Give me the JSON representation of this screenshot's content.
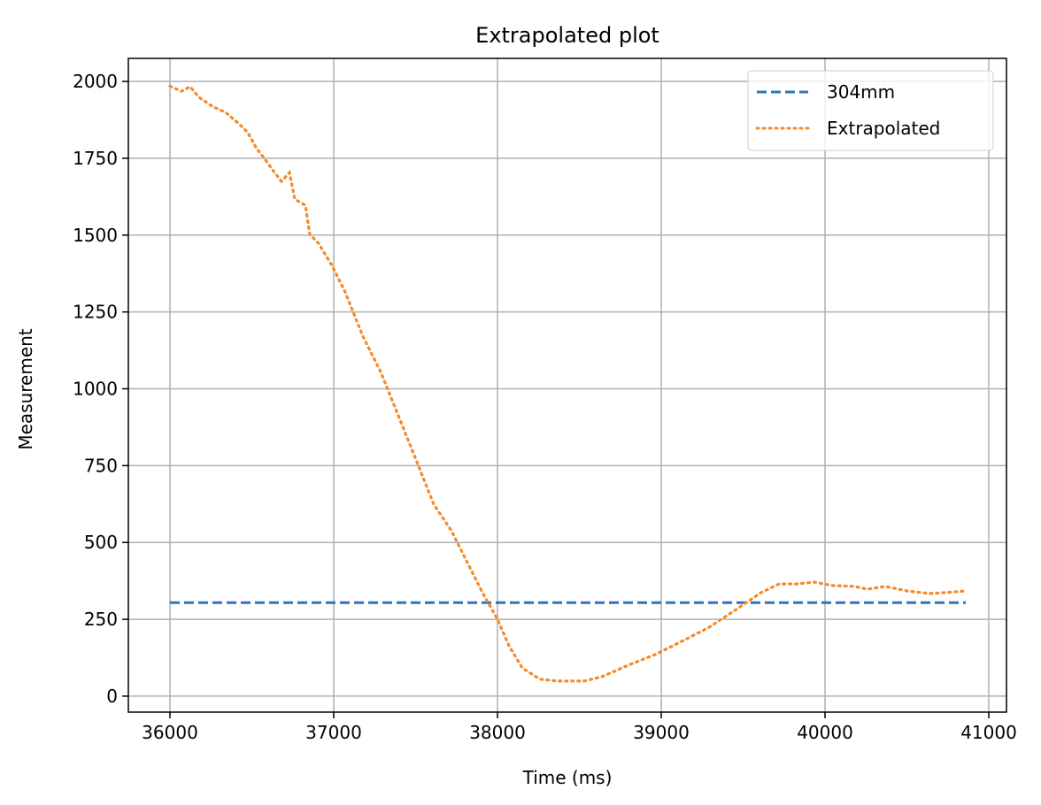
{
  "chart_data": {
    "type": "line",
    "title": "Extrapolated plot",
    "xlabel": "Time (ms)",
    "ylabel": "Measurement",
    "xlim": [
      35746,
      41108
    ],
    "ylim": [
      -52,
      2075
    ],
    "xticks": [
      36000,
      37000,
      38000,
      39000,
      40000,
      41000
    ],
    "yticks": [
      0,
      250,
      500,
      750,
      1000,
      1250,
      1500,
      1750,
      2000
    ],
    "grid": true,
    "legend_position": "top-right",
    "series": [
      {
        "name": "304mm",
        "color": "#3274b5",
        "style": "dashed",
        "x": [
          36000,
          40860
        ],
        "y": [
          304,
          304
        ]
      },
      {
        "name": "Extrapolated",
        "color": "#f58a2c",
        "style": "dotted",
        "x": [
          36000,
          36070,
          36124,
          36178,
          36259,
          36340,
          36422,
          36476,
          36530,
          36573,
          36638,
          36681,
          36730,
          36762,
          36827,
          36854,
          36908,
          36989,
          37070,
          37178,
          37286,
          37395,
          37503,
          37611,
          37719,
          37827,
          37908,
          38000,
          38070,
          38151,
          38259,
          38368,
          38530,
          38638,
          38800,
          38962,
          39124,
          39286,
          39449,
          39611,
          39719,
          39827,
          39935,
          40043,
          40178,
          40259,
          40368,
          40503,
          40638,
          40746,
          40854
        ],
        "y": [
          1985,
          1968,
          1983,
          1948,
          1919,
          1899,
          1862,
          1833,
          1781,
          1752,
          1704,
          1675,
          1703,
          1617,
          1597,
          1502,
          1473,
          1401,
          1315,
          1171,
          1056,
          912,
          768,
          624,
          538,
          423,
          337,
          250,
          164,
          92,
          55,
          49,
          49,
          63,
          101,
          135,
          178,
          222,
          279,
          337,
          365,
          365,
          371,
          360,
          357,
          348,
          357,
          342,
          334,
          337,
          342
        ]
      }
    ]
  }
}
